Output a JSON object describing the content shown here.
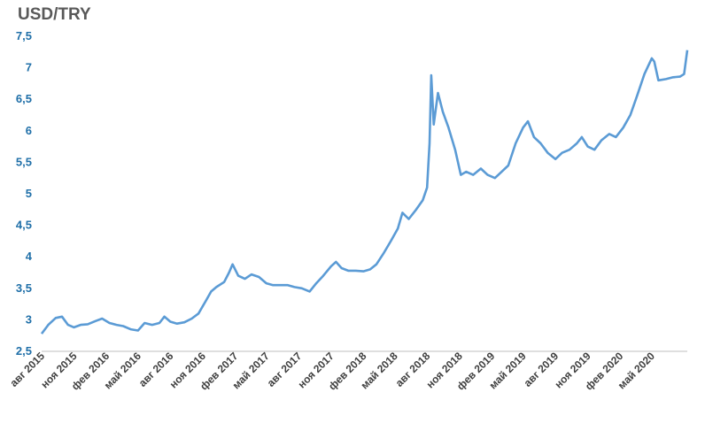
{
  "chart_data": {
    "type": "line",
    "title": "USD/TRY",
    "xlabel": "",
    "ylabel": "",
    "ylim": [
      2.5,
      7.5
    ],
    "y_ticks": [
      "2,5",
      "3",
      "3,5",
      "4",
      "4,5",
      "5",
      "5,5",
      "6",
      "6,5",
      "7",
      "7,5"
    ],
    "x_ticks": [
      "авг 2015",
      "ноя 2015",
      "фев 2016",
      "май 2016",
      "авг 2016",
      "ноя 2016",
      "фев 2017",
      "май 2017",
      "авг 2017",
      "ноя 2017",
      "фев 2018",
      "май 2018",
      "авг 2018",
      "ноя 2018",
      "фев 2019",
      "май 2019",
      "авг 2019",
      "ноя 2019",
      "фев 2020",
      "май 2020"
    ],
    "grid": false,
    "legend": "none",
    "colors": {
      "line": "#5b9bd5",
      "ytick": "#1f6fa8",
      "title": "#595959"
    },
    "series": [
      {
        "x": [
          "2015-08-01",
          "2015-08-20",
          "2015-09-10",
          "2015-09-28",
          "2015-10-15",
          "2015-11-01",
          "2015-11-20",
          "2015-12-10",
          "2016-01-01",
          "2016-01-20",
          "2016-02-10",
          "2016-03-01",
          "2016-03-20",
          "2016-04-10",
          "2016-05-01",
          "2016-05-20",
          "2016-06-10",
          "2016-07-01",
          "2016-07-15",
          "2016-08-01",
          "2016-08-20",
          "2016-09-10",
          "2016-10-01",
          "2016-10-20",
          "2016-11-10",
          "2016-11-25",
          "2016-12-10",
          "2017-01-01",
          "2017-01-15",
          "2017-01-25",
          "2017-02-10",
          "2017-03-01",
          "2017-03-20",
          "2017-04-10",
          "2017-05-01",
          "2017-05-20",
          "2017-06-10",
          "2017-07-01",
          "2017-07-20",
          "2017-08-10",
          "2017-09-01",
          "2017-09-20",
          "2017-10-10",
          "2017-11-01",
          "2017-11-15",
          "2017-12-01",
          "2017-12-20",
          "2018-01-10",
          "2018-02-01",
          "2018-02-20",
          "2018-03-10",
          "2018-03-30",
          "2018-04-20",
          "2018-05-10",
          "2018-05-23",
          "2018-06-10",
          "2018-07-01",
          "2018-07-20",
          "2018-08-01",
          "2018-08-08",
          "2018-08-13",
          "2018-08-20",
          "2018-09-01",
          "2018-09-15",
          "2018-10-01",
          "2018-10-20",
          "2018-11-05",
          "2018-11-20",
          "2018-12-10",
          "2019-01-01",
          "2019-01-20",
          "2019-02-10",
          "2019-03-01",
          "2019-03-20",
          "2019-04-10",
          "2019-05-01",
          "2019-05-15",
          "2019-06-01",
          "2019-06-20",
          "2019-07-10",
          "2019-08-01",
          "2019-08-20",
          "2019-09-10",
          "2019-10-01",
          "2019-10-15",
          "2019-11-01",
          "2019-11-20",
          "2019-12-10",
          "2020-01-01",
          "2020-01-20",
          "2020-02-10",
          "2020-03-01",
          "2020-03-20",
          "2020-04-10",
          "2020-05-01",
          "2020-05-08",
          "2020-05-20",
          "2020-06-10",
          "2020-07-01",
          "2020-07-20",
          "2020-08-01",
          "2020-08-10"
        ],
        "y": [
          2.78,
          2.92,
          3.03,
          3.05,
          2.92,
          2.88,
          2.92,
          2.93,
          2.98,
          3.02,
          2.95,
          2.92,
          2.9,
          2.85,
          2.83,
          2.95,
          2.92,
          2.95,
          3.05,
          2.97,
          2.94,
          2.96,
          3.02,
          3.1,
          3.3,
          3.45,
          3.52,
          3.6,
          3.75,
          3.88,
          3.7,
          3.65,
          3.72,
          3.68,
          3.58,
          3.55,
          3.55,
          3.55,
          3.52,
          3.5,
          3.45,
          3.58,
          3.7,
          3.85,
          3.92,
          3.82,
          3.78,
          3.78,
          3.77,
          3.8,
          3.88,
          4.05,
          4.25,
          4.45,
          4.7,
          4.6,
          4.75,
          4.9,
          5.1,
          5.8,
          6.88,
          6.1,
          6.6,
          6.3,
          6.05,
          5.7,
          5.3,
          5.35,
          5.3,
          5.4,
          5.3,
          5.25,
          5.35,
          5.45,
          5.8,
          6.05,
          6.15,
          5.9,
          5.8,
          5.65,
          5.55,
          5.65,
          5.7,
          5.8,
          5.9,
          5.75,
          5.7,
          5.85,
          5.95,
          5.9,
          6.05,
          6.25,
          6.55,
          6.9,
          7.15,
          7.1,
          6.8,
          6.82,
          6.85,
          6.86,
          6.9,
          7.28
        ]
      }
    ]
  }
}
